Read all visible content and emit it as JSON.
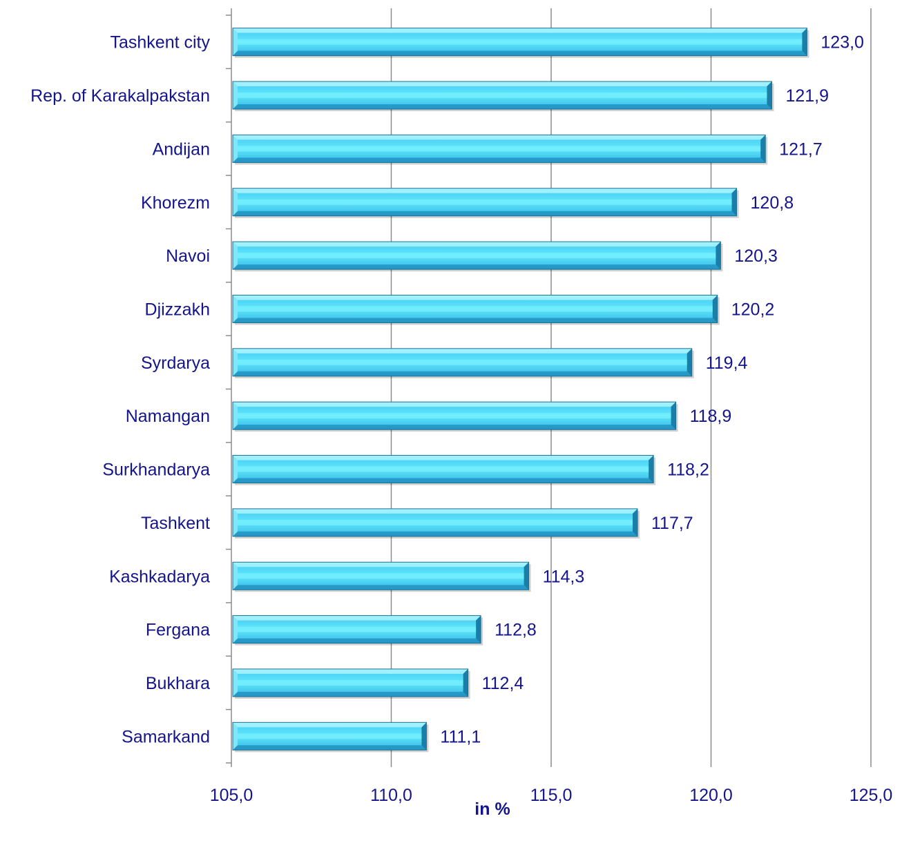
{
  "chart_data": {
    "type": "bar",
    "orientation": "horizontal",
    "title": "",
    "xlabel": "in %",
    "ylabel": "",
    "categories": [
      "Tashkent city",
      "Rep. of Karakalpakstan",
      "Andijan",
      "Khorezm",
      "Navoi",
      "Djizzakh",
      "Syrdarya",
      "Namangan",
      "Surkhandarya",
      "Tashkent",
      "Kashkadarya",
      "Fergana",
      "Bukhara",
      "Samarkand"
    ],
    "values": [
      123.0,
      121.9,
      121.7,
      120.8,
      120.3,
      120.2,
      119.4,
      118.9,
      118.2,
      117.7,
      114.3,
      112.8,
      112.4,
      111.1
    ],
    "value_labels": [
      "123,0",
      "121,9",
      "121,7",
      "120,8",
      "120,3",
      "120,2",
      "119,4",
      "118,9",
      "118,2",
      "117,7",
      "114,3",
      "112,8",
      "112,4",
      "111,1"
    ],
    "xlim": [
      105,
      125
    ],
    "x_ticks": [
      105,
      110,
      115,
      120,
      125
    ],
    "x_tick_labels": [
      "105,0",
      "110,0",
      "115,0",
      "120,0",
      "125,0"
    ],
    "grid": "vertical",
    "legend": "none",
    "colors": {
      "bar_fill": "#5fdff8",
      "bar_light": "#9ff0ff",
      "bar_dark": "#1d8fb8",
      "text": "#14148c",
      "grid": "#8c8c8c"
    }
  }
}
